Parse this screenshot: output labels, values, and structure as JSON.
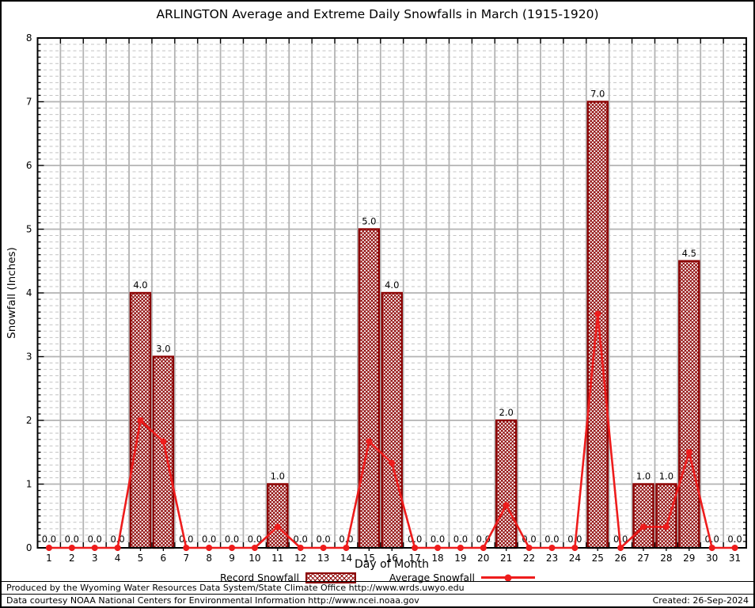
{
  "page": {
    "footer": {
      "line1": "Produced by the Wyoming Water Resources Data System/State Climate Office http://www.wrds.uwyo.edu",
      "line2": "Data courtesy NOAA National Centers for Environmental Information http://www.ncei.noaa.gov",
      "created": "Created: 26-Sep-2024"
    }
  },
  "legend": {
    "record_label": "Record Snowfall",
    "average_label": "Average Snowfall"
  },
  "chart_data": {
    "type": "bar",
    "title": "ARLINGTON Average and Extreme Daily Snowfalls in March (1915-1920)",
    "xlabel": "Day of Month",
    "ylabel": "Snowfall (Inches)",
    "ylim": [
      0,
      8
    ],
    "y_major_step": 1,
    "y_minor_step": 0.1,
    "grid": true,
    "legend_position": "bottom",
    "categories": [
      1,
      2,
      3,
      4,
      5,
      6,
      7,
      8,
      9,
      10,
      11,
      12,
      13,
      14,
      15,
      16,
      17,
      18,
      19,
      20,
      21,
      22,
      23,
      24,
      25,
      26,
      27,
      28,
      29,
      30,
      31
    ],
    "series": [
      {
        "name": "Record Snowfall",
        "type": "bar",
        "values": [
          0,
          0,
          0,
          0,
          4.0,
          3.0,
          0,
          0,
          0,
          0,
          1.0,
          0,
          0,
          0,
          5.0,
          4.0,
          0,
          0,
          0,
          0,
          2.0,
          0,
          0,
          0,
          7.0,
          0,
          1.0,
          1.0,
          4.5,
          0,
          0
        ],
        "point_labels": [
          "0.0",
          "0.0",
          "0.0",
          "0.0",
          "4.0",
          "3.0",
          "0.0",
          "0.0",
          "0.0",
          "0.0",
          "1.0",
          "0.0",
          "0.0",
          "0.0",
          "5.0",
          "4.0",
          "0.0",
          "0.0",
          "0.0",
          "0.0",
          "2.0",
          "0.0",
          "0.0",
          "0.0",
          "7.0",
          "0.0",
          "1.0",
          "1.0",
          "4.5",
          "0.0",
          "0.0"
        ]
      },
      {
        "name": "Average Snowfall",
        "type": "line",
        "values": [
          0,
          0,
          0,
          0,
          2.0,
          1.67,
          0,
          0,
          0,
          0,
          0.33,
          0,
          0,
          0,
          1.67,
          1.33,
          0,
          0,
          0,
          0,
          0.67,
          0,
          0,
          0,
          3.67,
          0,
          0.33,
          0.33,
          1.5,
          0,
          0
        ]
      }
    ],
    "colors": {
      "bar_hatch": "#8b0000",
      "bar_border": "#8b0000",
      "line": "#ee1c1c",
      "grid_major": "#b3b3b3",
      "grid_minor": "#c4c4c4",
      "axis": "#000000",
      "label_text": "#000000"
    }
  }
}
